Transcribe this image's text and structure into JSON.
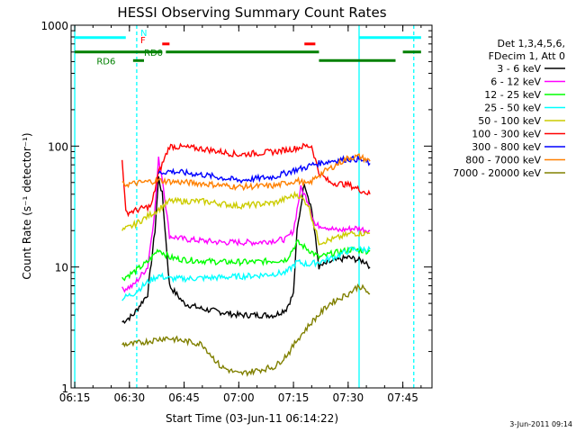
{
  "chart_data": {
    "type": "line",
    "title": "HESSI Observing Summary Count Rates",
    "xlabel": "Start Time (03-Jun-11 06:14:22)",
    "ylabel": "Count Rate (s⁻¹ detector⁻¹)",
    "x_unit": "UT",
    "xlim": [
      "06:14",
      "07:53"
    ],
    "ylim": [
      1,
      1000
    ],
    "yscale": "log",
    "x_ticks": [
      "06:15",
      "06:30",
      "06:45",
      "07:00",
      "07:15",
      "07:30",
      "07:45"
    ],
    "y_ticks": [
      "1",
      "10",
      "100",
      "1000"
    ],
    "legend_header": [
      "Det 1,3,4,5,6,",
      "FDecim 1, Att 0"
    ],
    "legend_position": "right",
    "series": [
      {
        "name": "3 - 6 keV",
        "color": "#000000",
        "x": [
          "06:28",
          "06:31",
          "06:35",
          "06:37",
          "06:38",
          "06:39",
          "06:41",
          "06:45",
          "06:50",
          "07:00",
          "07:10",
          "07:13",
          "07:15",
          "07:16",
          "07:18",
          "07:20",
          "07:22",
          "07:25",
          "07:30",
          "07:35",
          "07:36"
        ],
        "y": [
          3.5,
          4,
          6,
          20,
          55,
          40,
          7,
          5,
          4.5,
          4,
          4,
          4.5,
          6,
          20,
          50,
          30,
          10,
          11,
          12,
          11,
          10
        ]
      },
      {
        "name": "6 - 12 keV",
        "color": "#ff00ff",
        "x": [
          "06:28",
          "06:31",
          "06:35",
          "06:37",
          "06:38",
          "06:39",
          "06:41",
          "06:45",
          "06:55",
          "07:05",
          "07:13",
          "07:15",
          "07:17",
          "07:19",
          "07:21",
          "07:23",
          "07:27",
          "07:32",
          "07:36"
        ],
        "y": [
          6.5,
          7,
          10,
          30,
          78,
          55,
          18,
          17,
          16,
          16,
          17,
          20,
          45,
          35,
          22,
          22,
          20,
          21,
          20
        ]
      },
      {
        "name": "12 - 25 keV",
        "color": "#00ff00",
        "x": [
          "06:28",
          "06:31",
          "06:35",
          "06:38",
          "06:41",
          "06:45",
          "06:55",
          "07:05",
          "07:13",
          "07:16",
          "07:19",
          "07:22",
          "07:26",
          "07:31",
          "07:36"
        ],
        "y": [
          8,
          9,
          11,
          14,
          12,
          11.5,
          11,
          11,
          11.5,
          16,
          14,
          12,
          13,
          14,
          13.5
        ]
      },
      {
        "name": "25 - 50 keV",
        "color": "#00ffff",
        "x": [
          "06:28",
          "06:31",
          "06:35",
          "06:38",
          "06:41",
          "06:45",
          "06:55",
          "07:05",
          "07:13",
          "07:16",
          "07:19",
          "07:22",
          "07:26",
          "07:31",
          "07:36"
        ],
        "y": [
          5.5,
          6,
          7.5,
          8.5,
          8,
          8,
          8.2,
          8.5,
          9,
          11,
          10.5,
          11,
          12,
          14,
          14
        ]
      },
      {
        "name": "50 - 100 keV",
        "color": "#cccc00",
        "x": [
          "06:28",
          "06:31",
          "06:38",
          "06:41",
          "06:50",
          "07:00",
          "07:10",
          "07:16",
          "07:19",
          "07:22",
          "07:26",
          "07:31",
          "07:36"
        ],
        "y": [
          20,
          22,
          30,
          35,
          35,
          32,
          34,
          40,
          33,
          16,
          17,
          19,
          19
        ]
      },
      {
        "name": "100 - 300 keV",
        "color": "#ff0000",
        "x": [
          "06:28",
          "06:29",
          "06:31",
          "06:36",
          "06:38",
          "06:41",
          "06:50",
          "07:00",
          "07:10",
          "07:15",
          "07:18",
          "07:20",
          "07:22",
          "07:25",
          "07:30",
          "07:36"
        ],
        "y": [
          80,
          28,
          29,
          32,
          60,
          100,
          95,
          85,
          90,
          95,
          100,
          100,
          60,
          50,
          48,
          40
        ]
      },
      {
        "name": "300 - 800 keV",
        "color": "#0000ff",
        "x": [
          "06:38",
          "06:41",
          "06:50",
          "07:00",
          "07:10",
          "07:15",
          "07:18",
          "07:20",
          "07:22",
          "07:26",
          "07:30",
          "07:33",
          "07:36"
        ],
        "y": [
          60,
          62,
          58,
          52,
          56,
          63,
          66,
          70,
          72,
          76,
          78,
          78,
          72
        ]
      },
      {
        "name": "800 - 7000 keV",
        "color": "#ff8000",
        "x": [
          "06:28",
          "06:31",
          "06:38",
          "06:41",
          "06:50",
          "07:00",
          "07:10",
          "07:16",
          "07:19",
          "07:22",
          "07:26",
          "07:30",
          "07:33",
          "07:36"
        ],
        "y": [
          48,
          49,
          52,
          51,
          49,
          46,
          47,
          52,
          48,
          58,
          68,
          80,
          82,
          75
        ]
      },
      {
        "name": "7000 - 20000 keV",
        "color": "#808000",
        "x": [
          "06:28",
          "06:31",
          "06:40",
          "06:50",
          "06:55",
          "07:00",
          "07:10",
          "07:14",
          "07:16",
          "07:20",
          "07:25",
          "07:30",
          "07:33",
          "07:36"
        ],
        "y": [
          2.3,
          2.3,
          2.6,
          2.3,
          1.5,
          1.3,
          1.5,
          2,
          2.5,
          3.5,
          5,
          6,
          7,
          6
        ]
      }
    ],
    "flag_bars": [
      {
        "label": "",
        "color": "#00ffff",
        "segments": [
          [
            "06:15",
            "06:29"
          ],
          [
            "07:33",
            "07:50"
          ]
        ],
        "level": 790
      },
      {
        "label": "N",
        "color": "#00ffff",
        "segments": [],
        "level": 790
      },
      {
        "label": "F",
        "color": "#ff0000",
        "segments": [
          [
            "06:39",
            "06:41"
          ],
          [
            "07:18",
            "07:21"
          ]
        ],
        "level": 700
      },
      {
        "label": "RD0",
        "color": "#008000",
        "segments": [
          [
            "06:15",
            "06:39"
          ],
          [
            "06:40",
            "07:22"
          ],
          [
            "07:45",
            "07:50"
          ]
        ],
        "level": 600
      },
      {
        "label": "RD6",
        "color": "#008000",
        "segments": [
          [
            "06:31",
            "06:34"
          ],
          [
            "07:22",
            "07:43"
          ]
        ],
        "level": 510
      }
    ],
    "vertical_lines": [
      {
        "x": "06:15",
        "style": "solid",
        "color": "#00ffff"
      },
      {
        "x": "06:32",
        "style": "dashed",
        "color": "#00ffff"
      },
      {
        "x": "07:33",
        "style": "solid",
        "color": "#00ffff"
      },
      {
        "x": "07:48",
        "style": "dashed",
        "color": "#00ffff"
      }
    ],
    "grid": false
  },
  "footer": {
    "timestamp": "3-Jun-2011 09:14"
  }
}
